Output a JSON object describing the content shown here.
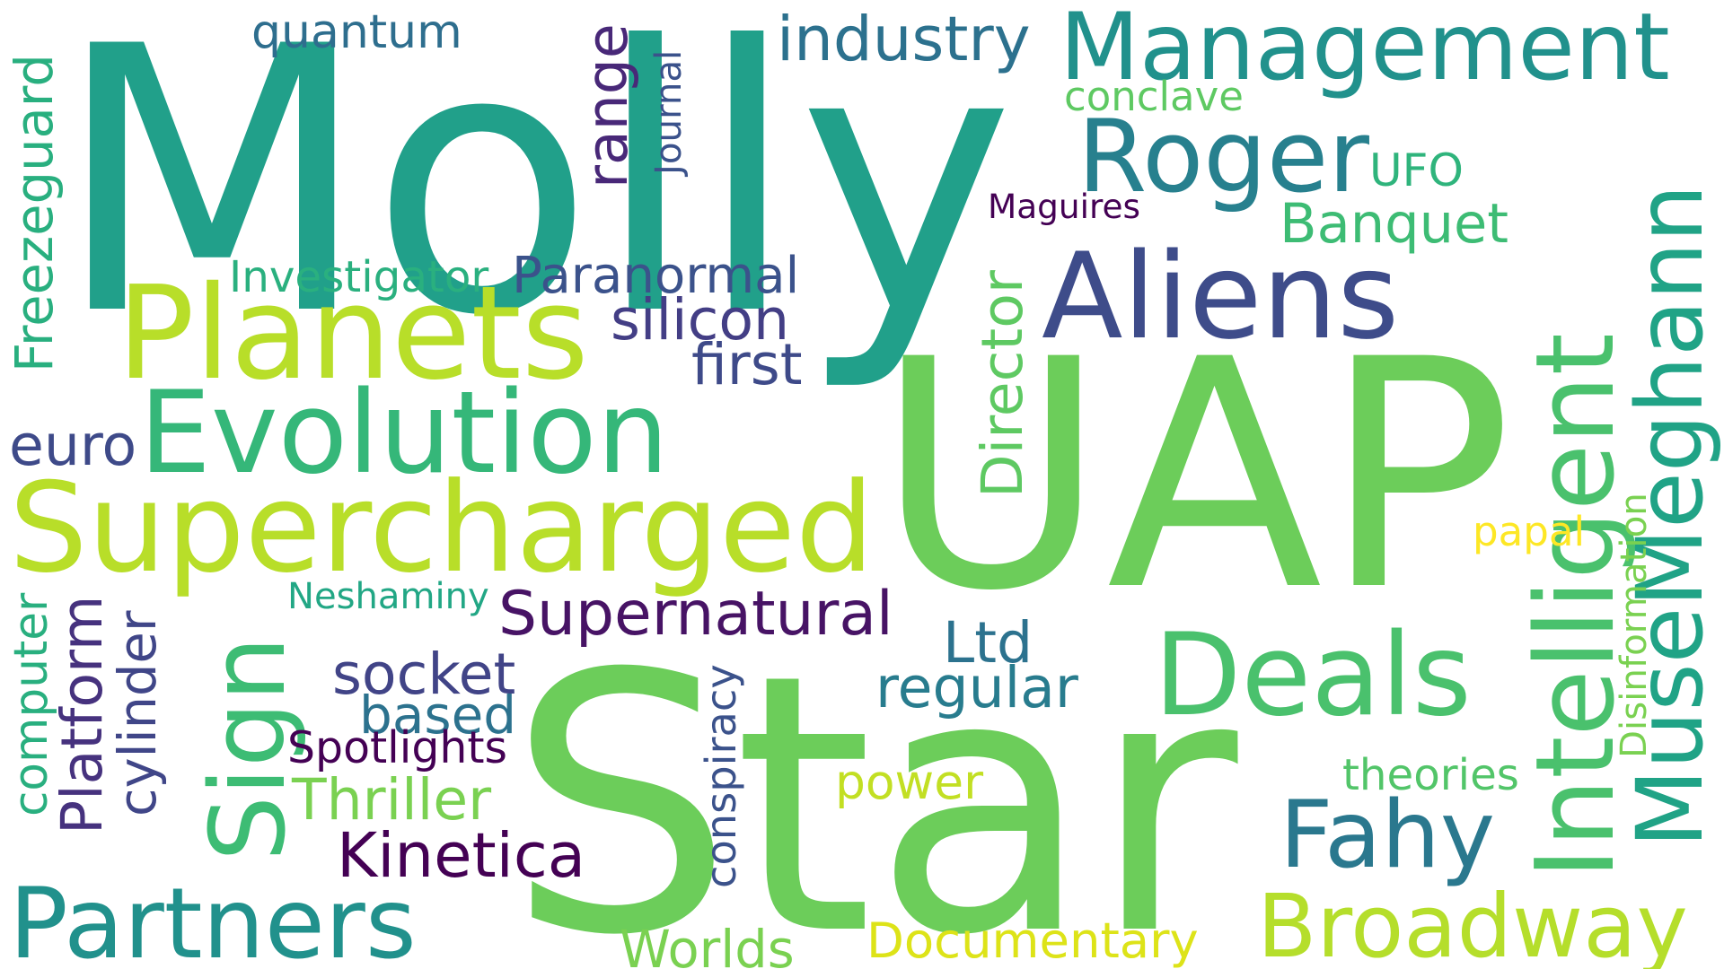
{
  "words": [
    {
      "id": "molly",
      "text": "Molly",
      "color": "#21a08a"
    },
    {
      "id": "uap",
      "text": "UAP",
      "color": "#6ccd5a"
    },
    {
      "id": "star",
      "text": "Star",
      "color": "#6ccd5a"
    },
    {
      "id": "management",
      "text": "Management",
      "color": "#21918c"
    },
    {
      "id": "aliens",
      "text": "Aliens",
      "color": "#3e4c8a"
    },
    {
      "id": "planets",
      "text": "Planets",
      "color": "#b8de29"
    },
    {
      "id": "evolution",
      "text": "Evolution",
      "color": "#35b779"
    },
    {
      "id": "supercharged",
      "text": "Supercharged",
      "color": "#b8de29"
    },
    {
      "id": "roger",
      "text": "Roger",
      "color": "#27808e"
    },
    {
      "id": "deals",
      "text": "Deals",
      "color": "#4ac16d"
    },
    {
      "id": "intelligent",
      "text": "Intelligent",
      "color": "#4ac16d"
    },
    {
      "id": "musemeghann",
      "text": "MuseMeghann",
      "color": "#20a386"
    },
    {
      "id": "partners",
      "text": "Partners",
      "color": "#21918c"
    },
    {
      "id": "broadway",
      "text": "Broadway",
      "color": "#b5de2b"
    },
    {
      "id": "sign",
      "text": "Sign",
      "color": "#3dbc74"
    },
    {
      "id": "fahy",
      "text": "Fahy",
      "color": "#2a788e"
    },
    {
      "id": "quantum",
      "text": "quantum",
      "color": "#2e6e8e"
    },
    {
      "id": "industry",
      "text": "industry",
      "color": "#2c718e"
    },
    {
      "id": "conclave",
      "text": "conclave",
      "color": "#5ec962"
    },
    {
      "id": "range",
      "text": "range",
      "color": "#482878"
    },
    {
      "id": "journal",
      "text": "Journal",
      "color": "#3b528b"
    },
    {
      "id": "ufo",
      "text": "UFO",
      "color": "#2fb47c"
    },
    {
      "id": "maguires",
      "text": "Maguires",
      "color": "#440154"
    },
    {
      "id": "banquet",
      "text": "Banquet",
      "color": "#3dbc74"
    },
    {
      "id": "freezeguard",
      "text": "Freezeguard",
      "color": "#29af7f"
    },
    {
      "id": "investigator",
      "text": "Investigator",
      "color": "#2ab07f"
    },
    {
      "id": "paranormal",
      "text": "Paranormal",
      "color": "#3b528b"
    },
    {
      "id": "silicon",
      "text": "silicon",
      "color": "#433e85"
    },
    {
      "id": "first",
      "text": "first",
      "color": "#3e4a89"
    },
    {
      "id": "director",
      "text": "Director",
      "color": "#5ec962"
    },
    {
      "id": "euro",
      "text": "euro",
      "color": "#3e4a89"
    },
    {
      "id": "papal",
      "text": "papal",
      "color": "#fde725"
    },
    {
      "id": "disinformation",
      "text": "Disinformation",
      "color": "#7ad151"
    },
    {
      "id": "neshaminy",
      "text": "Neshaminy",
      "color": "#22a785"
    },
    {
      "id": "supernatural",
      "text": "Supernatural",
      "color": "#471365"
    },
    {
      "id": "computer",
      "text": "computer",
      "color": "#29af7f"
    },
    {
      "id": "platform",
      "text": "Platform",
      "color": "#46327e"
    },
    {
      "id": "cylinder",
      "text": "cylinder",
      "color": "#404688"
    },
    {
      "id": "ltd",
      "text": "Ltd",
      "color": "#2c728e"
    },
    {
      "id": "socket",
      "text": "socket",
      "color": "#414487"
    },
    {
      "id": "based",
      "text": "based",
      "color": "#2c728e"
    },
    {
      "id": "regular",
      "text": "regular",
      "color": "#287c8e"
    },
    {
      "id": "conspiracy",
      "text": "conspiracy",
      "color": "#3b528b"
    },
    {
      "id": "spotlights",
      "text": "Spotlights",
      "color": "#440154"
    },
    {
      "id": "thriller",
      "text": "Thriller",
      "color": "#7ad151"
    },
    {
      "id": "power",
      "text": "power",
      "color": "#c2df23"
    },
    {
      "id": "theories",
      "text": "theories",
      "color": "#52c569"
    },
    {
      "id": "kinetica",
      "text": "Kinetica",
      "color": "#440154"
    },
    {
      "id": "worlds",
      "text": "Worlds",
      "color": "#7ad151"
    },
    {
      "id": "documentary",
      "text": "Documentary",
      "color": "#dde318"
    }
  ]
}
